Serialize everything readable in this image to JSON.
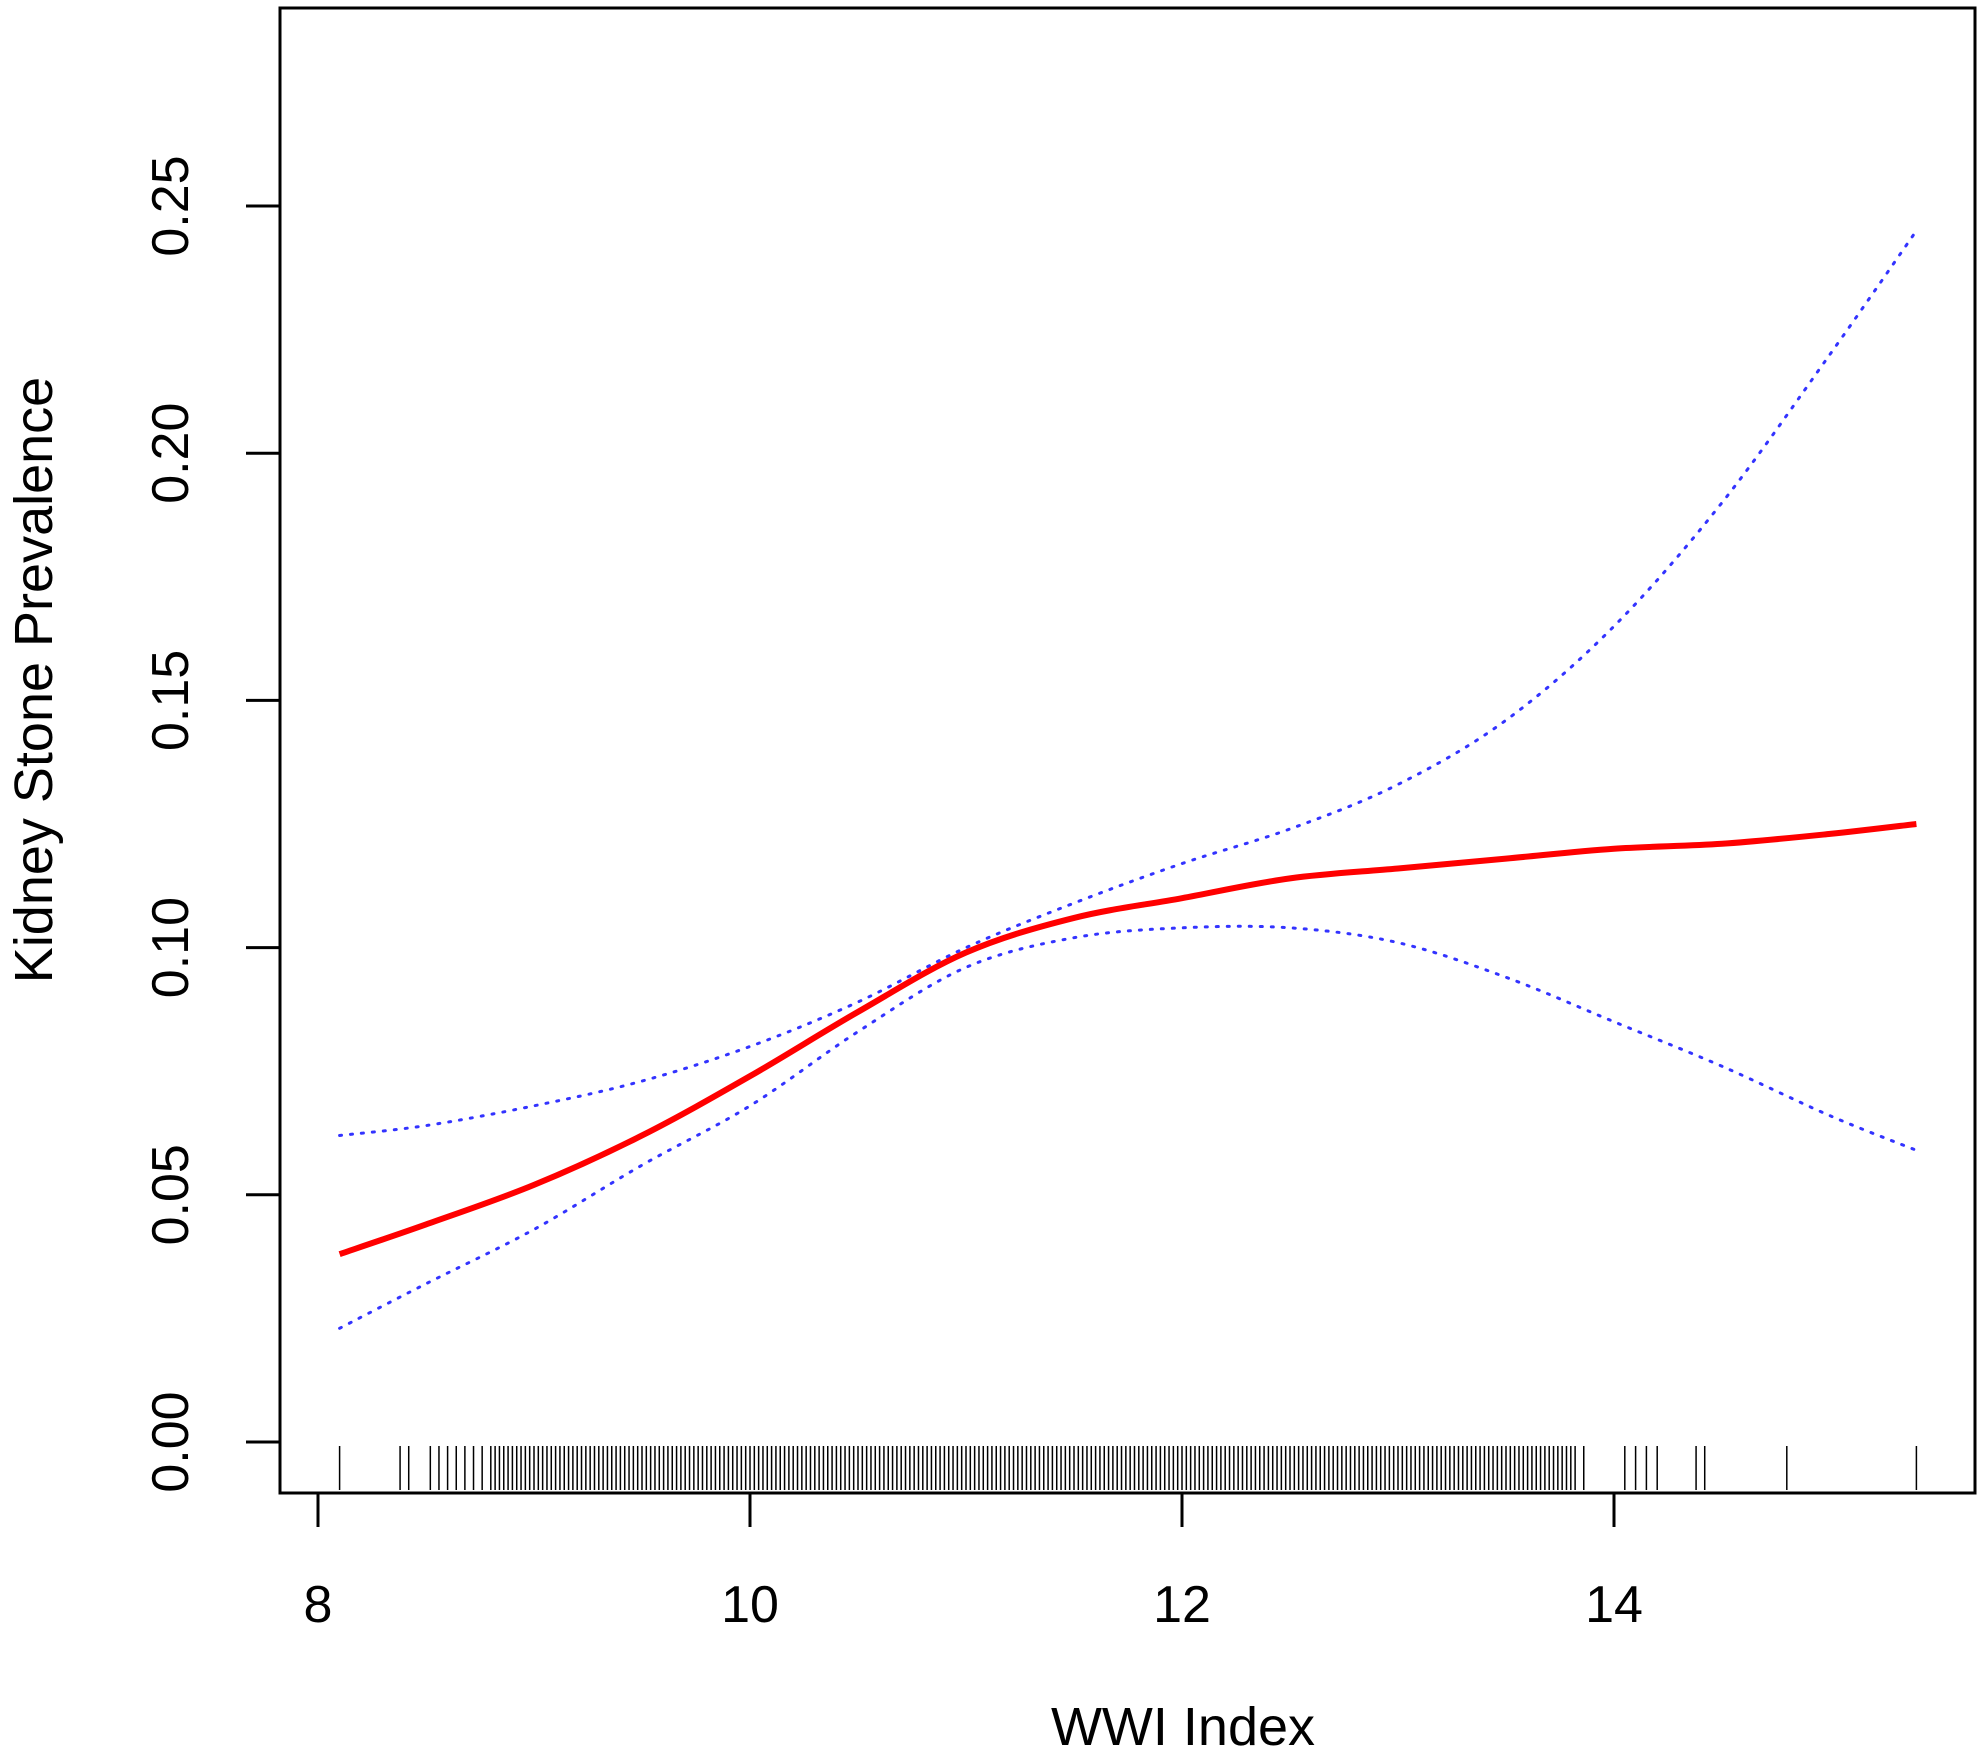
{
  "chart_data": {
    "type": "line",
    "xlabel": "WWI Index",
    "ylabel": "Kidney Stone  Prevalence",
    "xlim": [
      7.9,
      15.6
    ],
    "ylim": [
      -0.01,
      0.29
    ],
    "x_ticks": [
      "8",
      "10",
      "12",
      "14"
    ],
    "y_ticks": [
      "0.00",
      "0.05",
      "0.10",
      "0.15",
      "0.20",
      "0.25"
    ],
    "grid": false,
    "legend": "none",
    "series": [
      {
        "role": "estimate",
        "style": "solid",
        "color": "#ff0000",
        "x": [
          8.1,
          8.5,
          9.0,
          9.5,
          10.0,
          10.5,
          11.0,
          11.5,
          12.0,
          12.5,
          13.0,
          13.5,
          14.0,
          14.5,
          15.0,
          15.4
        ],
        "y": [
          0.038,
          0.044,
          0.052,
          0.062,
          0.074,
          0.087,
          0.099,
          0.106,
          0.11,
          0.114,
          0.116,
          0.118,
          0.12,
          0.121,
          0.123,
          0.125
        ]
      },
      {
        "role": "upper-ci",
        "style": "dotted",
        "color": "#3333ff",
        "x": [
          8.1,
          8.5,
          9.0,
          9.5,
          10.0,
          10.5,
          11.0,
          11.5,
          12.0,
          12.5,
          13.0,
          13.5,
          14.0,
          14.5,
          15.0,
          15.4
        ],
        "y": [
          0.062,
          0.064,
          0.068,
          0.073,
          0.08,
          0.089,
          0.1,
          0.109,
          0.117,
          0.124,
          0.133,
          0.146,
          0.165,
          0.19,
          0.22,
          0.245
        ]
      },
      {
        "role": "lower-ci",
        "style": "dotted",
        "color": "#3333ff",
        "x": [
          8.1,
          8.5,
          9.0,
          9.5,
          10.0,
          10.5,
          11.0,
          11.5,
          12.0,
          12.5,
          13.0,
          13.5,
          14.0,
          14.5,
          15.0,
          15.4
        ],
        "y": [
          0.023,
          0.032,
          0.043,
          0.056,
          0.068,
          0.083,
          0.096,
          0.102,
          0.104,
          0.104,
          0.101,
          0.094,
          0.085,
          0.076,
          0.066,
          0.059
        ]
      }
    ],
    "rug": {
      "sparse_x": [
        8.1,
        8.38,
        8.42,
        8.52,
        8.56,
        8.6,
        8.64,
        8.68,
        8.72,
        8.76,
        8.8,
        13.82,
        13.86,
        14.05,
        14.1,
        14.15,
        14.2,
        14.38,
        14.42,
        14.8,
        15.4
      ],
      "dense_from": 8.82,
      "dense_to": 13.8,
      "dense_step": 0.02
    }
  }
}
